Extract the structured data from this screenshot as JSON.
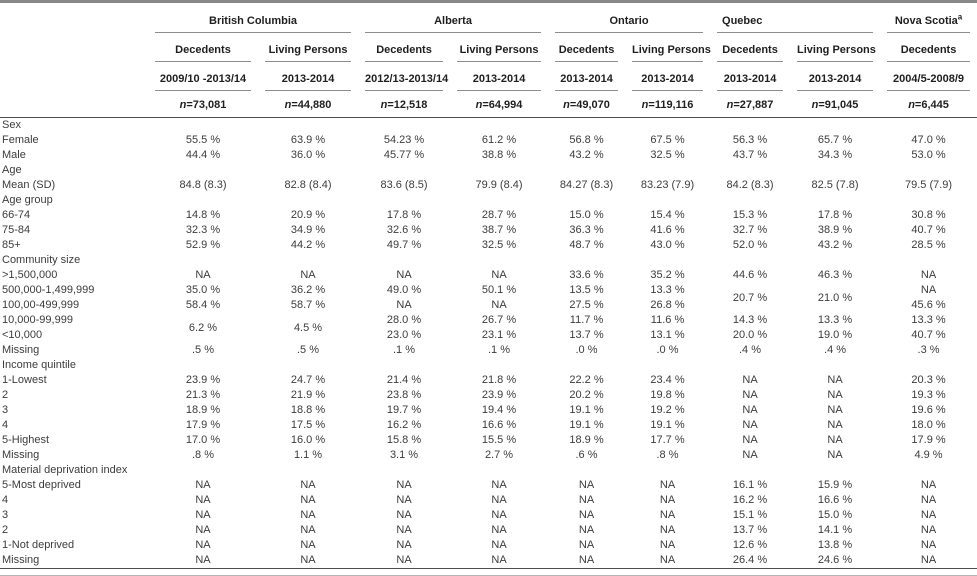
{
  "colors": {
    "top_rule": "#878787",
    "heavy_rule": "#4d4d4d",
    "light_rule": "#8d8d8d",
    "header_text": "#1f1f1f",
    "body_text": "#3c3c3c"
  },
  "table": {
    "row_label_header": "",
    "groups": [
      {
        "name": "British Columbia",
        "sup": "",
        "align": "center",
        "columns": [
          {
            "cohort": "Decedents",
            "period": "2009/10 -2013/14",
            "n": "n=73,081"
          },
          {
            "cohort": "Living Persons",
            "period": "2013-2014",
            "n": "n=44,880"
          }
        ]
      },
      {
        "name": "Alberta",
        "sup": "",
        "align": "center",
        "columns": [
          {
            "cohort": "Decedents",
            "period": "2012/13-2013/14",
            "n": "n=12,518"
          },
          {
            "cohort": "Living Persons",
            "period": "2013-2014",
            "n": "n=64,994"
          }
        ]
      },
      {
        "name": "Ontario",
        "sup": "",
        "align": "center",
        "columns": [
          {
            "cohort": "Decedents",
            "period": "2013-2014",
            "n": "n=49,070"
          },
          {
            "cohort": "Living Persons",
            "period": "2013-2014",
            "n": "n=119,116"
          }
        ]
      },
      {
        "name": "Quebec",
        "sup": "",
        "align": "left",
        "columns": [
          {
            "cohort": "Decedents",
            "period": "2013-2014",
            "n": "n=27,887"
          },
          {
            "cohort": "Living Persons",
            "period": "2013-2014",
            "n": "n=91,045"
          }
        ]
      },
      {
        "name": "Nova Scotia",
        "sup": "a",
        "align": "center",
        "columns": [
          {
            "cohort": "Decedents",
            "period": "2004/5-2008/9",
            "n": "n=6,445"
          }
        ]
      }
    ],
    "rows": [
      {
        "label": "Sex"
      },
      {
        "label": "Female",
        "values": [
          "55.5 %",
          "63.9 %",
          "54.23 %",
          "61.2 %",
          "56.8 %",
          "67.5 %",
          "56.3 %",
          "65.7 %",
          "47.0 %"
        ]
      },
      {
        "label": "Male",
        "values": [
          "44.4 %",
          "36.0 %",
          "45.77 %",
          "38.8 %",
          "43.2 %",
          "32.5 %",
          "43.7 %",
          "34.3 %",
          "53.0 %"
        ]
      },
      {
        "label": "Age"
      },
      {
        "label": "Mean (SD)",
        "values": [
          "84.8 (8.3)",
          "82.8 (8.4)",
          "83.6 (8.5)",
          "79.9 (8.4)",
          "84.27 (8.3)",
          "83.23 (7.9)",
          "84.2 (8.3)",
          "82.5 (7.8)",
          "79.5 (7.9)"
        ]
      },
      {
        "label": "Age group"
      },
      {
        "label": "66-74",
        "values": [
          "14.8 %",
          "20.9 %",
          "17.8 %",
          "28.7 %",
          "15.0 %",
          "15.4 %",
          "15.3 %",
          "17.8 %",
          "30.8 %"
        ]
      },
      {
        "label": "75-84",
        "values": [
          "32.3 %",
          "34.9 %",
          "32.6 %",
          "38.7 %",
          "36.3 %",
          "41.6 %",
          "32.7 %",
          "38.9 %",
          "40.7 %"
        ]
      },
      {
        "label": "85+",
        "values": [
          "52.9 %",
          "44.2 %",
          "49.7 %",
          "32.5 %",
          "48.7 %",
          "43.0 %",
          "52.0 %",
          "43.2 %",
          "28.5 %"
        ]
      },
      {
        "label": "Community size"
      },
      {
        "label": ">1,500,000",
        "values": [
          "NA",
          "NA",
          "NA",
          "NA",
          "33.6 %",
          "35.2 %",
          "44.6 %",
          "46.3 %",
          "NA"
        ]
      },
      {
        "label": "500,000-1,499,999",
        "values": [
          "35.0 %",
          "36.2 %",
          "49.0 %",
          "50.1 %",
          "13.5 %",
          "13.3 %",
          {
            "text": "20.7 %",
            "rowspan": 2
          },
          {
            "text": "21.0 %",
            "rowspan": 2
          },
          "NA"
        ]
      },
      {
        "label": "100,00-499,999",
        "values": [
          "58.4 %",
          "58.7 %",
          "NA",
          "NA",
          "27.5 %",
          "26.8 %",
          null,
          null,
          "45.6 %"
        ]
      },
      {
        "label": "10,000-99,999",
        "values": [
          {
            "text": "6.2 %",
            "rowspan": 2
          },
          {
            "text": "4.5 %",
            "rowspan": 2
          },
          "28.0 %",
          "26.7 %",
          "11.7 %",
          "11.6 %",
          "14.3 %",
          "13.3 %",
          "13.3 %"
        ]
      },
      {
        "label": "<10,000",
        "values": [
          null,
          null,
          "23.0 %",
          "23.1 %",
          "13.7 %",
          "13.1 %",
          "20.0 %",
          "19.0 %",
          "40.7 %"
        ]
      },
      {
        "label": "Missing",
        "values": [
          ".5 %",
          ".5 %",
          ".1 %",
          ".1 %",
          ".0 %",
          ".0 %",
          ".4 %",
          ".4 %",
          ".3 %"
        ]
      },
      {
        "label": "Income quintile"
      },
      {
        "label": "1-Lowest",
        "values": [
          "23.9 %",
          "24.7 %",
          "21.4 %",
          "21.8 %",
          "22.2 %",
          "23.4 %",
          "NA",
          "NA",
          "20.3 %"
        ]
      },
      {
        "label": "2",
        "values": [
          "21.3 %",
          "21.9 %",
          "23.8 %",
          "23.9 %",
          "20.2 %",
          "19.8 %",
          "NA",
          "NA",
          "19.3 %"
        ]
      },
      {
        "label": "3",
        "values": [
          "18.9 %",
          "18.8 %",
          "19.7 %",
          "19.4 %",
          "19.1 %",
          "19.2 %",
          "NA",
          "NA",
          "19.6 %"
        ]
      },
      {
        "label": "4",
        "values": [
          "17.9 %",
          "17.5 %",
          "16.2 %",
          "16.6 %",
          "19.1 %",
          "19.1 %",
          "NA",
          "NA",
          "18.0 %"
        ]
      },
      {
        "label": "5-Highest",
        "values": [
          "17.0 %",
          "16.0 %",
          "15.8 %",
          "15.5 %",
          "18.9 %",
          "17.7 %",
          "NA",
          "NA",
          "17.9 %"
        ]
      },
      {
        "label": "Missing",
        "values": [
          ".8 %",
          "1.1 %",
          "3.1 %",
          "2.7 %",
          ".6 %",
          ".8 %",
          "NA",
          "NA",
          "4.9 %"
        ]
      },
      {
        "label": "Material deprivation index"
      },
      {
        "label": "5-Most deprived",
        "values": [
          "NA",
          "NA",
          "NA",
          "NA",
          "NA",
          "NA",
          "16.1 %",
          "15.9 %",
          "NA"
        ]
      },
      {
        "label": "4",
        "values": [
          "NA",
          "NA",
          "NA",
          "NA",
          "NA",
          "NA",
          "16.2 %",
          "16.6 %",
          "NA"
        ]
      },
      {
        "label": "3",
        "values": [
          "NA",
          "NA",
          "NA",
          "NA",
          "NA",
          "NA",
          "15.1 %",
          "15.0 %",
          "NA"
        ]
      },
      {
        "label": "2",
        "values": [
          "NA",
          "NA",
          "NA",
          "NA",
          "NA",
          "NA",
          "13.7 %",
          "14.1 %",
          "NA"
        ]
      },
      {
        "label": "1-Not deprived",
        "values": [
          "NA",
          "NA",
          "NA",
          "NA",
          "NA",
          "NA",
          "12.6 %",
          "13.8 %",
          "NA"
        ]
      },
      {
        "label": "Missing",
        "values": [
          "NA",
          "NA",
          "NA",
          "NA",
          "NA",
          "NA",
          "26.4 %",
          "24.6 %",
          "NA"
        ]
      }
    ]
  }
}
